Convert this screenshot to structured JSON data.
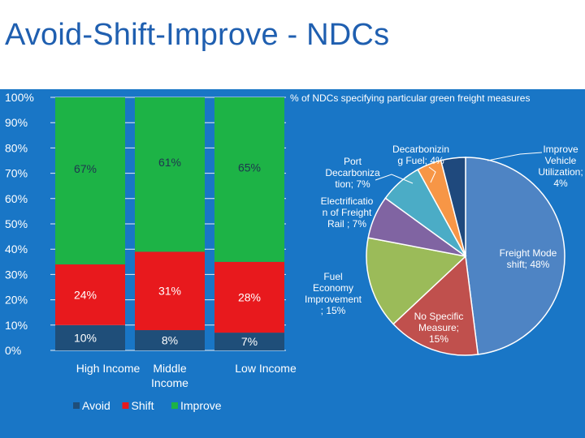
{
  "slide": {
    "title": "Avoid-Shift-Improve - NDCs",
    "band_color": "#1976c6"
  },
  "chart_data": [
    {
      "type": "bar",
      "stacked": true,
      "title": "",
      "categories": [
        "High Income",
        "Middle Income",
        "Low Income"
      ],
      "series": [
        {
          "name": "Avoid",
          "values": [
            10,
            8,
            7
          ],
          "labels": [
            "10%",
            "8%",
            "7%"
          ],
          "color": "#1f4e79"
        },
        {
          "name": "Shift",
          "values": [
            24,
            31,
            28
          ],
          "labels": [
            "24%",
            "31%",
            "28%"
          ],
          "color": "#e8191d"
        },
        {
          "name": "Improve",
          "values": [
            67,
            61,
            65
          ],
          "labels": [
            "67%",
            "61%",
            "65%"
          ],
          "color": "#1db346"
        }
      ],
      "ylim": [
        0,
        100
      ],
      "yticks": [
        "0%",
        "10%",
        "20%",
        "30%",
        "40%",
        "50%",
        "60%",
        "70%",
        "80%",
        "90%",
        "100%"
      ],
      "grid": true,
      "legend": "bottom"
    },
    {
      "type": "pie",
      "title": "% of NDCs specifying particular green freight measures",
      "slices": [
        {
          "label": "Freight Mode shift; 48%",
          "value": 48,
          "color": "#4e84c4"
        },
        {
          "label": "No Specific Measure; 15%",
          "value": 15,
          "color": "#c0504d"
        },
        {
          "label": "Fuel Economy Improvement ; 15%",
          "value": 15,
          "color": "#9bbb59"
        },
        {
          "label": "Electrification of Freight Rail ; 7%",
          "value": 7,
          "color": "#8064a2"
        },
        {
          "label": "Port Decarbonization; 7%",
          "value": 7,
          "color": "#4bacc6"
        },
        {
          "label": "Decarbonizing Fuel; 4%",
          "value": 4,
          "color": "#f79646"
        },
        {
          "label": "Improve Vehicle Utilization; 4%",
          "value": 4,
          "color": "#1f497d"
        }
      ],
      "legend": "none"
    }
  ]
}
